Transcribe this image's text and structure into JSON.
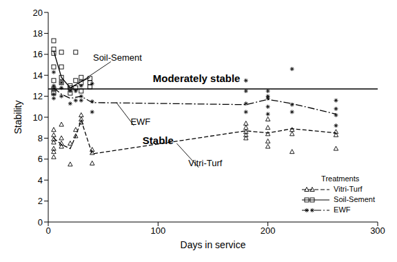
{
  "chart_data": {
    "type": "scatter",
    "x_label": "Days in service",
    "y_label": "Stability",
    "xlim": [
      0,
      300
    ],
    "xticks": [
      0,
      100,
      200,
      300
    ],
    "ylim": [
      0,
      20
    ],
    "yticks": [
      0,
      2,
      4,
      6,
      8,
      10,
      12,
      14,
      16,
      18,
      20
    ],
    "legend_title": "Treatments",
    "legend": "lower right",
    "grid": false,
    "reference_line": {
      "y": 12.7
    },
    "annotations": [
      {
        "text": "Moderately stable",
        "x": 135,
        "y": 13.7
      },
      {
        "text": "Stable",
        "x": 100,
        "y": 7.8
      },
      {
        "text": "Soil-Sement",
        "x": 63,
        "y": 15.7,
        "target": [
          30,
          13.4
        ]
      },
      {
        "text": "EWF",
        "x": 84,
        "y": 9.6,
        "target": [
          62,
          11.4
        ]
      },
      {
        "text": "Vitri-Turf",
        "x": 143,
        "y": 5.6,
        "target": [
          117,
          7.5
        ]
      }
    ],
    "series": [
      {
        "name": "Vitri-Turf",
        "color": "#000000",
        "marker": "triangle",
        "line_style": "dashed",
        "x": [
          5,
          5,
          5,
          5,
          5,
          5,
          5,
          12,
          12,
          12,
          12,
          20,
          20,
          25,
          25,
          30,
          30,
          30,
          40,
          40,
          40,
          180,
          180,
          180,
          180,
          180,
          200,
          200,
          200,
          200,
          200,
          222,
          222,
          222,
          262,
          262,
          262
        ],
        "values": [
          6.2,
          7.0,
          7.6,
          7.9,
          8.3,
          8.8,
          6.7,
          7.2,
          7.5,
          8.0,
          9.3,
          5.5,
          7.5,
          8.2,
          8.8,
          9.5,
          9.8,
          10.2,
          5.6,
          6.6,
          6.9,
          8.0,
          8.3,
          8.6,
          9.0,
          9.4,
          7.2,
          7.7,
          8.4,
          9.0,
          9.8,
          6.7,
          8.4,
          8.8,
          7.0,
          8.3,
          8.6
        ],
        "mean": {
          "x": [
            5,
            12,
            20,
            25,
            30,
            40,
            180,
            200,
            222,
            262
          ],
          "values": [
            8.0,
            7.4,
            7.0,
            8.2,
            9.7,
            6.5,
            8.7,
            8.5,
            8.9,
            8.5
          ]
        }
      },
      {
        "name": "Soil-Sement",
        "color": "#000000",
        "marker": "square",
        "line_style": "solid",
        "x": [
          5,
          5,
          5,
          5,
          5,
          5,
          5,
          12,
          12,
          12,
          12,
          20,
          20,
          20,
          25,
          25,
          25,
          30,
          30,
          30,
          38,
          38,
          38
        ],
        "values": [
          16.5,
          17.3,
          16.1,
          14.8,
          13.5,
          12.7,
          12.3,
          16.2,
          14.8,
          13.8,
          13.3,
          13.0,
          12.8,
          12.3,
          16.2,
          13.5,
          12.8,
          13.8,
          13.3,
          12.5,
          13.7,
          13.3,
          12.9
        ],
        "mean": {
          "x": [
            5,
            12,
            20,
            25,
            30,
            38
          ],
          "values": [
            16.3,
            13.8,
            12.8,
            13.1,
            13.4,
            13.8
          ]
        }
      },
      {
        "name": "EWF",
        "color": "#000000",
        "marker": "asterisk",
        "line_style": "dashdot",
        "x": [
          5,
          5,
          5,
          5,
          5,
          12,
          12,
          12,
          20,
          20,
          25,
          25,
          30,
          30,
          30,
          40,
          40,
          40,
          180,
          180,
          180,
          180,
          200,
          200,
          200,
          200,
          200,
          222,
          222,
          222,
          262,
          262,
          262,
          262
        ],
        "values": [
          14.3,
          13.0,
          12.7,
          12.2,
          11.8,
          13.3,
          12.8,
          12.0,
          12.5,
          11.3,
          12.5,
          11.6,
          13.0,
          12.0,
          11.6,
          13.2,
          11.5,
          10.5,
          13.5,
          12.5,
          11.3,
          10.5,
          12.5,
          12.0,
          11.8,
          11.0,
          10.3,
          14.6,
          11.2,
          10.5,
          11.6,
          10.8,
          10.2,
          9.2
        ],
        "mean": {
          "x": [
            5,
            12,
            20,
            30,
            40,
            180,
            200,
            222,
            262
          ],
          "values": [
            12.8,
            12.2,
            11.8,
            12.0,
            11.4,
            11.2,
            11.7,
            11.3,
            10.3
          ]
        }
      }
    ]
  }
}
